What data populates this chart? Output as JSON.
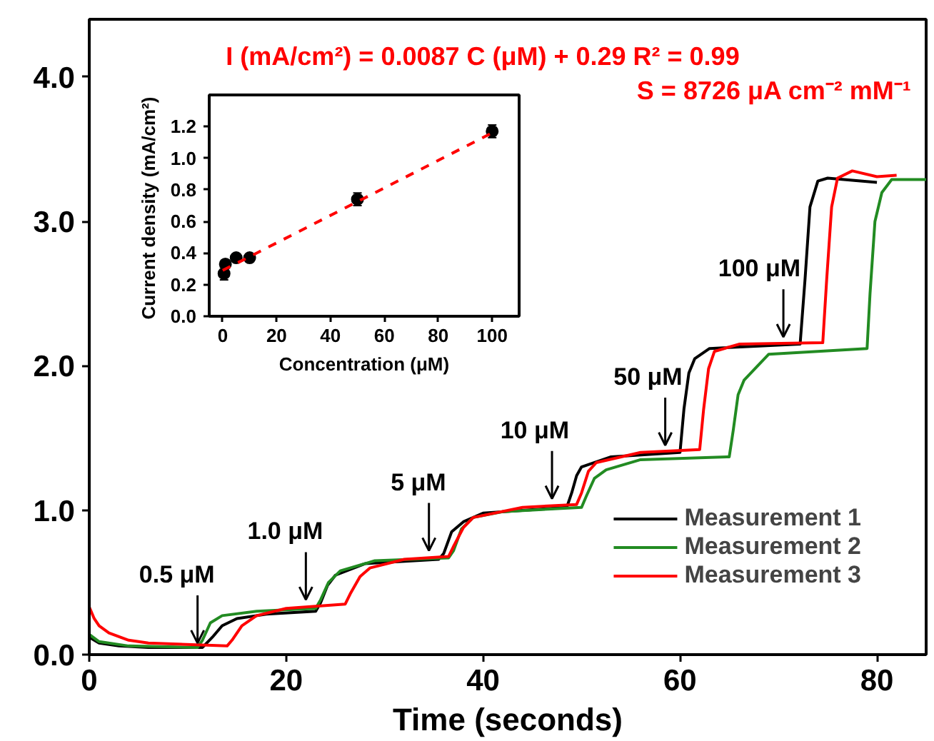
{
  "chart_data": [
    {
      "type": "line",
      "xlabel": "Time (seconds)",
      "xlim": [
        0,
        85
      ],
      "ylim": [
        0,
        4.4
      ],
      "xticks": [
        0,
        20,
        40,
        60,
        80
      ],
      "yticks": [
        {
          "value": 0,
          "label": "0.0"
        },
        {
          "value": 1,
          "label": "1.0"
        },
        {
          "value": 2,
          "label": "2.0"
        },
        {
          "value": 3,
          "label": "3.0"
        },
        {
          "value": 4,
          "label": "4.0"
        }
      ],
      "grid": false,
      "legend": "bottom right",
      "marker": "none",
      "line_style": "solid",
      "series": [
        {
          "name": "Measurement 1",
          "color": "#000000",
          "x": [
            0,
            1,
            3,
            6,
            11.5,
            12.5,
            13.5,
            15,
            18,
            23,
            23.5,
            24.2,
            25,
            28,
            35.5,
            36,
            36.8,
            38,
            40,
            48.5,
            49,
            49.5,
            50,
            53,
            60,
            60.4,
            60.9,
            61.5,
            63,
            72.2,
            72.7,
            73.2,
            74,
            75,
            80
          ],
          "values": [
            0.12,
            0.08,
            0.06,
            0.05,
            0.05,
            0.12,
            0.2,
            0.25,
            0.28,
            0.3,
            0.36,
            0.48,
            0.55,
            0.63,
            0.66,
            0.7,
            0.85,
            0.92,
            0.98,
            1.02,
            1.12,
            1.24,
            1.3,
            1.37,
            1.4,
            1.7,
            1.95,
            2.05,
            2.12,
            2.15,
            2.6,
            3.1,
            3.28,
            3.3,
            3.27
          ]
        },
        {
          "name": "Measurement 2",
          "color": "#228b22",
          "x": [
            0,
            1,
            4,
            11,
            11.5,
            12.3,
            13.5,
            17,
            23,
            23.5,
            24.3,
            25.5,
            29,
            36.5,
            37,
            37.8,
            39,
            42,
            50,
            50.5,
            51.3,
            52.5,
            56,
            65,
            65.4,
            65.9,
            66.5,
            69,
            79,
            79.3,
            79.8,
            80.5,
            81.5,
            85
          ],
          "values": [
            0.14,
            0.09,
            0.06,
            0.05,
            0.1,
            0.22,
            0.27,
            0.3,
            0.32,
            0.38,
            0.5,
            0.58,
            0.65,
            0.67,
            0.72,
            0.87,
            0.95,
            0.99,
            1.02,
            1.1,
            1.22,
            1.28,
            1.35,
            1.37,
            1.55,
            1.8,
            1.9,
            2.08,
            2.12,
            2.5,
            3.0,
            3.2,
            3.29,
            3.29
          ]
        },
        {
          "name": "Measurement 3",
          "color": "#ff0000",
          "x": [
            0,
            0.5,
            1,
            2,
            4,
            6,
            14,
            14.5,
            15.5,
            17,
            20,
            26,
            26.5,
            27.5,
            28.5,
            32,
            36.5,
            37,
            38,
            39,
            44,
            49.5,
            50,
            50.7,
            51.5,
            56,
            62,
            62.4,
            62.9,
            63.5,
            66,
            74.5,
            74.9,
            75.4,
            76,
            77.5,
            80,
            82
          ],
          "values": [
            0.33,
            0.25,
            0.2,
            0.15,
            0.1,
            0.08,
            0.06,
            0.1,
            0.2,
            0.27,
            0.32,
            0.35,
            0.42,
            0.54,
            0.6,
            0.66,
            0.68,
            0.75,
            0.88,
            0.95,
            1.02,
            1.04,
            1.12,
            1.27,
            1.33,
            1.4,
            1.42,
            1.7,
            1.98,
            2.1,
            2.15,
            2.16,
            2.6,
            3.1,
            3.3,
            3.35,
            3.31,
            3.32
          ]
        }
      ],
      "annotations": [
        "I (mA/cm²) = 0.0087 C (μM) + 0.29  R² = 0.99",
        "S = 8726 μA cm⁻² mM⁻¹",
        {
          "text": "0.5 μM",
          "x": 11,
          "y": 0.08
        },
        {
          "text": "1.0 μM",
          "x": 22,
          "y": 0.38
        },
        {
          "text": "5 μM",
          "x": 34.5,
          "y": 0.72
        },
        {
          "text": "10 μM",
          "x": 47,
          "y": 1.08
        },
        {
          "text": "50 μM",
          "x": 58.5,
          "y": 1.45
        },
        {
          "text": "100 μM",
          "x": 70.5,
          "y": 2.2
        }
      ]
    },
    {
      "type": "scatter",
      "xlabel": "Concentration (μM)",
      "ylabel": "Current density  (mA/cm²)",
      "xlim": [
        -5,
        110
      ],
      "ylim": [
        0,
        1.4
      ],
      "xticks": [
        0,
        20,
        40,
        60,
        80,
        100
      ],
      "yticks": [
        {
          "value": 0,
          "label": "0.0"
        },
        {
          "value": 0.2,
          "label": "0.2"
        },
        {
          "value": 0.4,
          "label": "0.4"
        },
        {
          "value": 0.6,
          "label": "0.6"
        },
        {
          "value": 0.8,
          "label": "0.8"
        },
        {
          "value": 1.0,
          "label": "1.0"
        },
        {
          "value": 1.2,
          "label": "1.2"
        }
      ],
      "grid": false,
      "marker": "circle",
      "series": [
        {
          "type": "scatter",
          "color": "#000000",
          "x": [
            0.5,
            1,
            5,
            10,
            50,
            100
          ],
          "values": [
            0.27,
            0.33,
            0.37,
            0.37,
            0.74,
            1.17
          ],
          "errors": [
            0.04,
            0.02,
            0.01,
            0.02,
            0.04,
            0.04
          ]
        },
        {
          "type": "line",
          "color": "#ff0000",
          "line_style": "dashed",
          "marker": "none",
          "x": [
            0,
            100
          ],
          "values": [
            0.29,
            1.16
          ]
        }
      ]
    }
  ]
}
